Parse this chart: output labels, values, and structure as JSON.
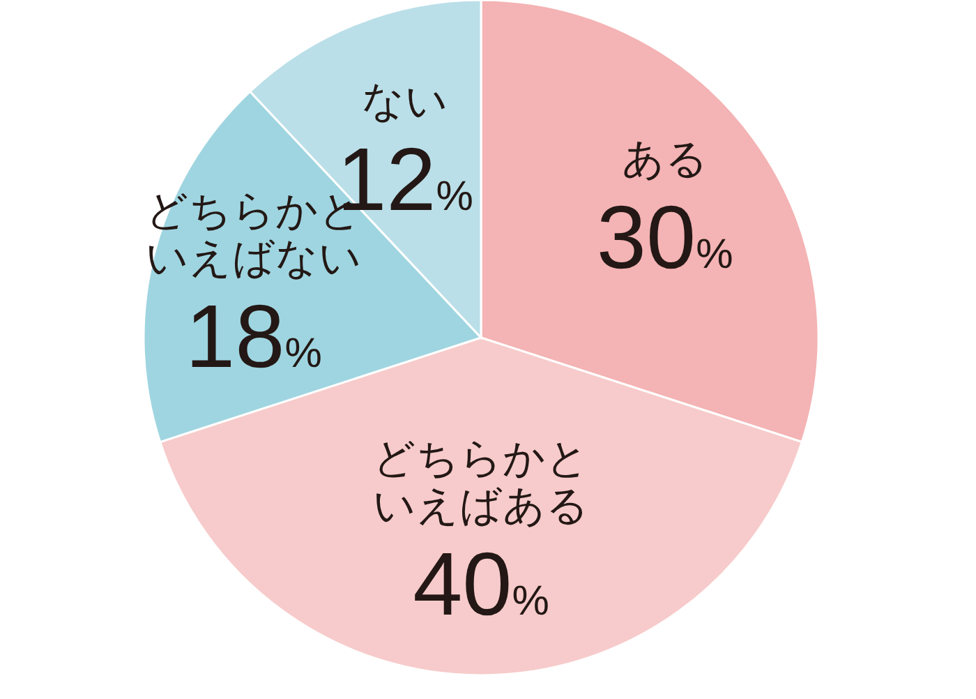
{
  "chart_data": {
    "type": "pie",
    "categories": [
      "ある",
      "どちらかといえばある",
      "どちらかといえばない",
      "ない"
    ],
    "values": [
      30,
      40,
      18,
      12
    ],
    "colors": [
      "#f4b3b4",
      "#f7cbcb",
      "#9fd5e0",
      "#badfe8"
    ],
    "value_labels": [
      "30%",
      "40%",
      "18%",
      "12%"
    ]
  }
}
